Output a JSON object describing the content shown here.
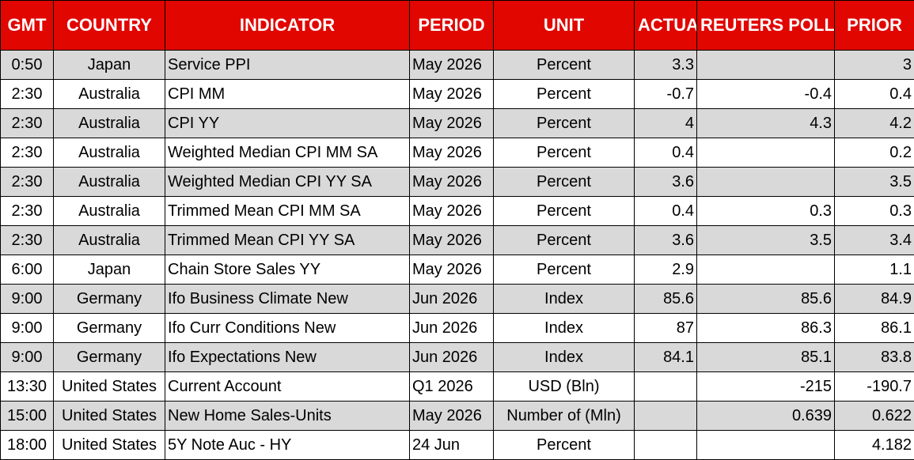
{
  "colors": {
    "header_bg": "#e10600",
    "header_text": "#ffffff",
    "row_shade": "#d9d9d9",
    "row_plain": "#ffffff"
  },
  "headers": {
    "gmt": "GMT",
    "country": "COUNTRY",
    "indicator": "INDICATOR",
    "period": "PERIOD",
    "unit": "UNIT",
    "actual": "ACTUAL",
    "poll": "REUTERS POLL",
    "prior": "PRIOR"
  },
  "rows": [
    {
      "gmt": "0:50",
      "country": "Japan",
      "indicator": "Service PPI",
      "period": "May 2026",
      "unit": "Percent",
      "actual": "3.3",
      "poll": "",
      "prior": "3"
    },
    {
      "gmt": "2:30",
      "country": "Australia",
      "indicator": "CPI MM",
      "period": "May 2026",
      "unit": "Percent",
      "actual": "-0.7",
      "poll": "-0.4",
      "prior": "0.4"
    },
    {
      "gmt": "2:30",
      "country": "Australia",
      "indicator": "CPI YY",
      "period": "May 2026",
      "unit": "Percent",
      "actual": "4",
      "poll": "4.3",
      "prior": "4.2"
    },
    {
      "gmt": "2:30",
      "country": "Australia",
      "indicator": "Weighted Median CPI MM SA",
      "period": "May 2026",
      "unit": "Percent",
      "actual": "0.4",
      "poll": "",
      "prior": "0.2"
    },
    {
      "gmt": "2:30",
      "country": "Australia",
      "indicator": "Weighted Median CPI YY SA",
      "period": "May 2026",
      "unit": "Percent",
      "actual": "3.6",
      "poll": "",
      "prior": "3.5"
    },
    {
      "gmt": "2:30",
      "country": "Australia",
      "indicator": "Trimmed Mean CPI MM SA",
      "period": "May 2026",
      "unit": "Percent",
      "actual": "0.4",
      "poll": "0.3",
      "prior": "0.3"
    },
    {
      "gmt": "2:30",
      "country": "Australia",
      "indicator": "Trimmed Mean CPI YY SA",
      "period": "May 2026",
      "unit": "Percent",
      "actual": "3.6",
      "poll": "3.5",
      "prior": "3.4"
    },
    {
      "gmt": "6:00",
      "country": "Japan",
      "indicator": "Chain Store Sales YY",
      "period": "May 2026",
      "unit": "Percent",
      "actual": "2.9",
      "poll": "",
      "prior": "1.1"
    },
    {
      "gmt": "9:00",
      "country": "Germany",
      "indicator": "Ifo Business Climate New",
      "period": "Jun 2026",
      "unit": "Index",
      "actual": "85.6",
      "poll": "85.6",
      "prior": "84.9"
    },
    {
      "gmt": "9:00",
      "country": "Germany",
      "indicator": "Ifo Curr Conditions New",
      "period": "Jun 2026",
      "unit": "Index",
      "actual": "87",
      "poll": "86.3",
      "prior": "86.1"
    },
    {
      "gmt": "9:00",
      "country": "Germany",
      "indicator": "Ifo Expectations New",
      "period": "Jun 2026",
      "unit": "Index",
      "actual": "84.1",
      "poll": "85.1",
      "prior": "83.8"
    },
    {
      "gmt": "13:30",
      "country": "United States",
      "indicator": "Current Account",
      "period": "Q1 2026",
      "unit": "USD (Bln)",
      "actual": "",
      "poll": "-215",
      "prior": "-190.7"
    },
    {
      "gmt": "15:00",
      "country": "United States",
      "indicator": "New Home Sales-Units",
      "period": "May 2026",
      "unit": "Number of (Mln)",
      "actual": "",
      "poll": "0.639",
      "prior": "0.622"
    },
    {
      "gmt": "18:00",
      "country": "United States",
      "indicator": "5Y Note Auc - HY",
      "period": "24 Jun",
      "unit": "Percent",
      "actual": "",
      "poll": "",
      "prior": "4.182"
    }
  ]
}
